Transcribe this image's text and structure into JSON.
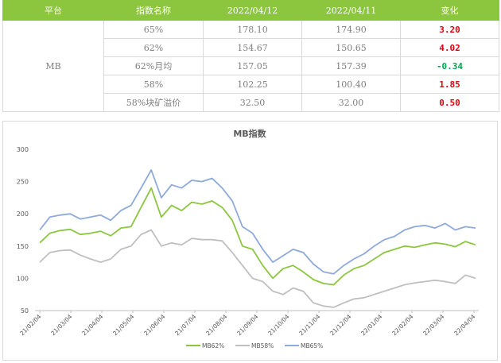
{
  "table": {
    "headers": [
      "平台",
      "指数名称",
      "2022/04/12",
      "2022/04/11",
      "变化"
    ],
    "platform": "MB",
    "rows": [
      {
        "name": "65%",
        "v1": "178.10",
        "v2": "174.90",
        "delta": "3.20",
        "delta_color": "#e0000f"
      },
      {
        "name": "62%",
        "v1": "154.67",
        "v2": "150.65",
        "delta": "4.02",
        "delta_color": "#e0000f"
      },
      {
        "name": "62%月均",
        "v1": "157.05",
        "v2": "157.39",
        "delta": "-0.34",
        "delta_color": "#00a651"
      },
      {
        "name": "58%",
        "v1": "102.25",
        "v2": "100.40",
        "delta": "1.85",
        "delta_color": "#e0000f"
      },
      {
        "name": "58%块矿溢价",
        "v1": "32.50",
        "v2": "32.00",
        "delta": "0.50",
        "delta_color": "#e0000f"
      }
    ]
  },
  "chart_data": {
    "type": "line",
    "title": "MB指数",
    "x_ticks": [
      "21/02/04",
      "21/03/04",
      "21/04/04",
      "21/05/04",
      "21/06/04",
      "21/07/04",
      "21/08/04",
      "21/09/04",
      "21/10/04",
      "21/11/04",
      "21/12/04",
      "22/01/04",
      "22/02/04",
      "22/03/04",
      "22/04/04"
    ],
    "ylim": [
      50,
      300
    ],
    "y_ticks": [
      50,
      100,
      150,
      200,
      250,
      300
    ],
    "grid": false,
    "legend_position": "bottom",
    "series": [
      {
        "name": "MB62%",
        "color": "#8cc63f",
        "values": [
          155,
          170,
          174,
          176,
          168,
          170,
          173,
          166,
          178,
          180,
          210,
          240,
          195,
          213,
          205,
          218,
          215,
          220,
          210,
          190,
          150,
          145,
          120,
          100,
          115,
          120,
          110,
          98,
          92,
          90,
          105,
          115,
          120,
          130,
          140,
          145,
          150,
          148,
          152,
          155,
          153,
          149,
          157,
          152
        ]
      },
      {
        "name": "MB58%",
        "color": "#bfbfbf",
        "values": [
          125,
          140,
          143,
          144,
          136,
          130,
          125,
          130,
          145,
          150,
          168,
          175,
          150,
          155,
          152,
          162,
          160,
          160,
          158,
          140,
          120,
          100,
          95,
          80,
          75,
          85,
          80,
          62,
          57,
          55,
          62,
          68,
          70,
          75,
          80,
          85,
          90,
          93,
          95,
          97,
          95,
          92,
          105,
          100
        ]
      },
      {
        "name": "MB65%",
        "color": "#8eaadb",
        "values": [
          175,
          195,
          198,
          200,
          192,
          195,
          198,
          190,
          205,
          213,
          240,
          268,
          225,
          245,
          240,
          252,
          250,
          255,
          240,
          220,
          180,
          170,
          145,
          125,
          135,
          145,
          140,
          122,
          110,
          107,
          120,
          130,
          138,
          150,
          160,
          165,
          175,
          180,
          182,
          178,
          185,
          175,
          180,
          178
        ]
      }
    ]
  }
}
